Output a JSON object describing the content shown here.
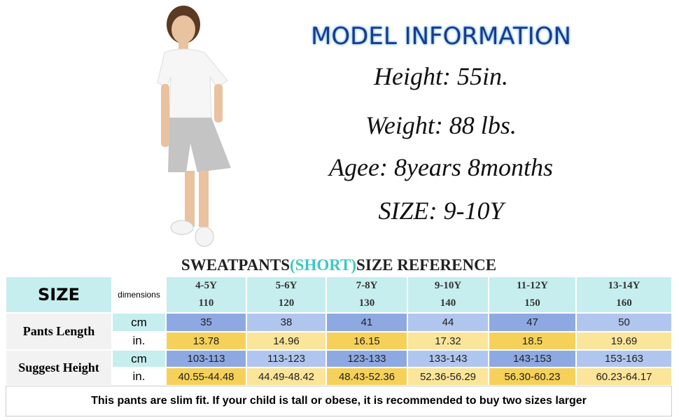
{
  "model": {
    "title": "MODEL INFORMATION",
    "lines": [
      "Height: 55in.",
      "Weight: 88 lbs.",
      "Agee: 8years 8months",
      "SIZE: 9-10Y"
    ]
  },
  "table": {
    "title": [
      "SWEATPANTS",
      "(SHORT)",
      "SIZE REFERENCE"
    ],
    "size_label": "SIZE",
    "dimensions_label": "dimensions",
    "sizes": [
      [
        "4-5Y",
        "110"
      ],
      [
        "5-6Y",
        "120"
      ],
      [
        "7-8Y",
        "130"
      ],
      [
        "9-10Y",
        "140"
      ],
      [
        "11-12Y",
        "150"
      ],
      [
        "13-14Y",
        "160"
      ]
    ],
    "groups": [
      {
        "label": "Pants Length",
        "rows": [
          {
            "unit": "cm",
            "cells": [
              "35",
              "38",
              "41",
              "44",
              "47",
              "50"
            ]
          },
          {
            "unit": "in.",
            "cells": [
              "13.78",
              "14.96",
              "16.15",
              "17.32",
              "18.5",
              "19.69"
            ]
          }
        ]
      },
      {
        "label": "Suggest Height",
        "rows": [
          {
            "unit": "cm",
            "cells": [
              "103-113",
              "113-123",
              "123-133",
              "133-143",
              "143-153",
              "153-163"
            ]
          },
          {
            "unit": "in.",
            "cells": [
              "40.55-44.48",
              "44.49-48.42",
              "48.43-52.36",
              "52.36-56.29",
              "56.30-60.23",
              "60.23-64.17"
            ]
          }
        ]
      }
    ],
    "note": "This pants are slim fit. If your child is tall or obese, it is recommended to buy two sizes larger"
  }
}
